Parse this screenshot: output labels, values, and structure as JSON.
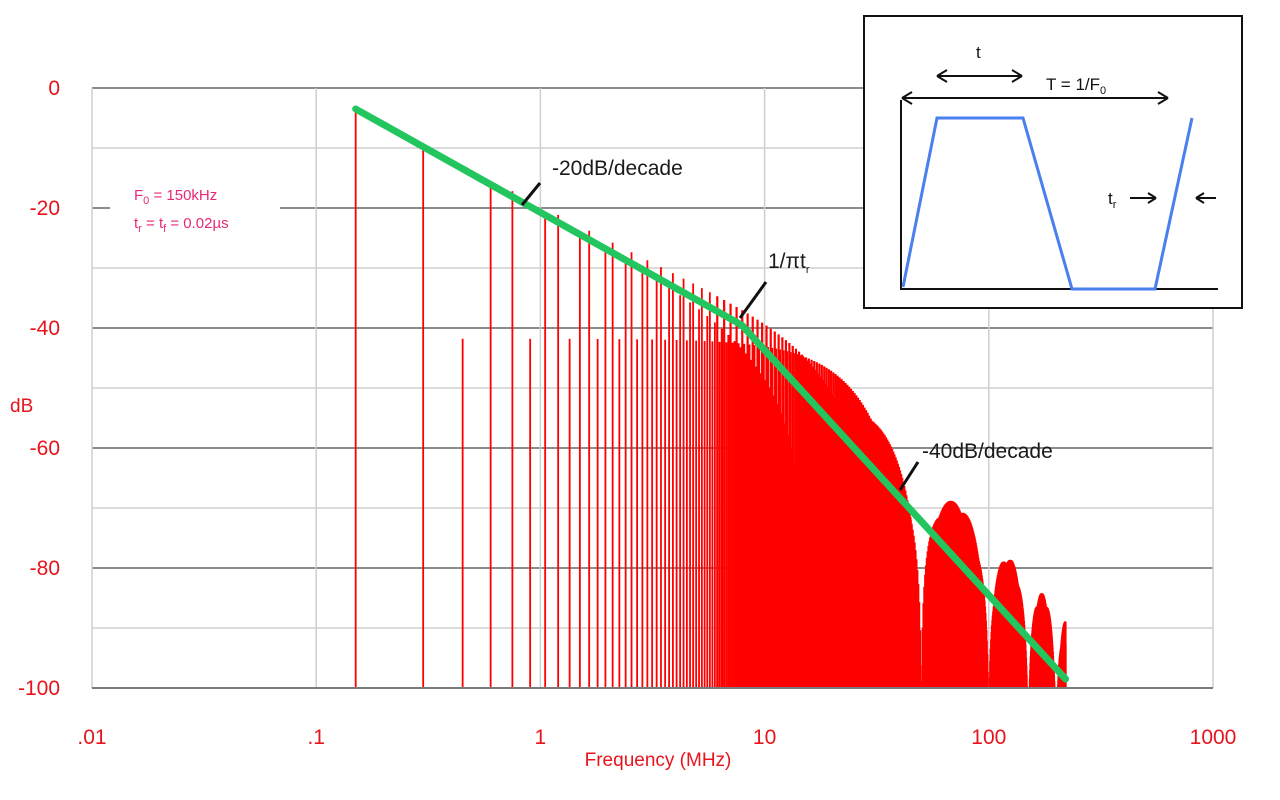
{
  "chart_data": {
    "type": "bar",
    "xlabel": "Frequency (MHz)",
    "ylabel": "dB",
    "xscale": "log",
    "xlim": [
      0.01,
      1000
    ],
    "ylim": [
      -100,
      0
    ],
    "xticks": [
      ".01",
      ".1",
      "1",
      "10",
      "100",
      "1000"
    ],
    "yticks": [
      "0",
      "-20",
      "-40",
      "-60",
      "-80",
      "-100"
    ],
    "grid": true,
    "params": {
      "f0": {
        "main": "F",
        "sub": "0",
        "rest": " = 150kHz"
      },
      "tr": {
        "t1": "t",
        "s1": "r",
        "mid": " = t",
        "s2": "f",
        "rest": " = 0.02µs"
      }
    },
    "spectrum": {
      "f0_mhz": 0.15,
      "duty": 0.33,
      "rise_us": 0.02,
      "color": "#ff0000",
      "max_freq_mhz": 220
    },
    "envelope": {
      "color": "#22c55e",
      "points": [
        [
          0.15,
          -3.5
        ],
        [
          7.9,
          -39.5
        ],
        [
          220,
          -98.5
        ]
      ]
    },
    "annotations": {
      "slope1": "-20dB/decade",
      "corner": {
        "main": "1/πt",
        "sub": "r"
      },
      "slope2": "-40dB/decade"
    },
    "inset": {
      "t_label": "t",
      "period": {
        "main": "T = 1/F",
        "sub": "0"
      },
      "tr": {
        "main": "t",
        "sub": "r"
      },
      "wave_color": "#4a7ff0"
    }
  }
}
